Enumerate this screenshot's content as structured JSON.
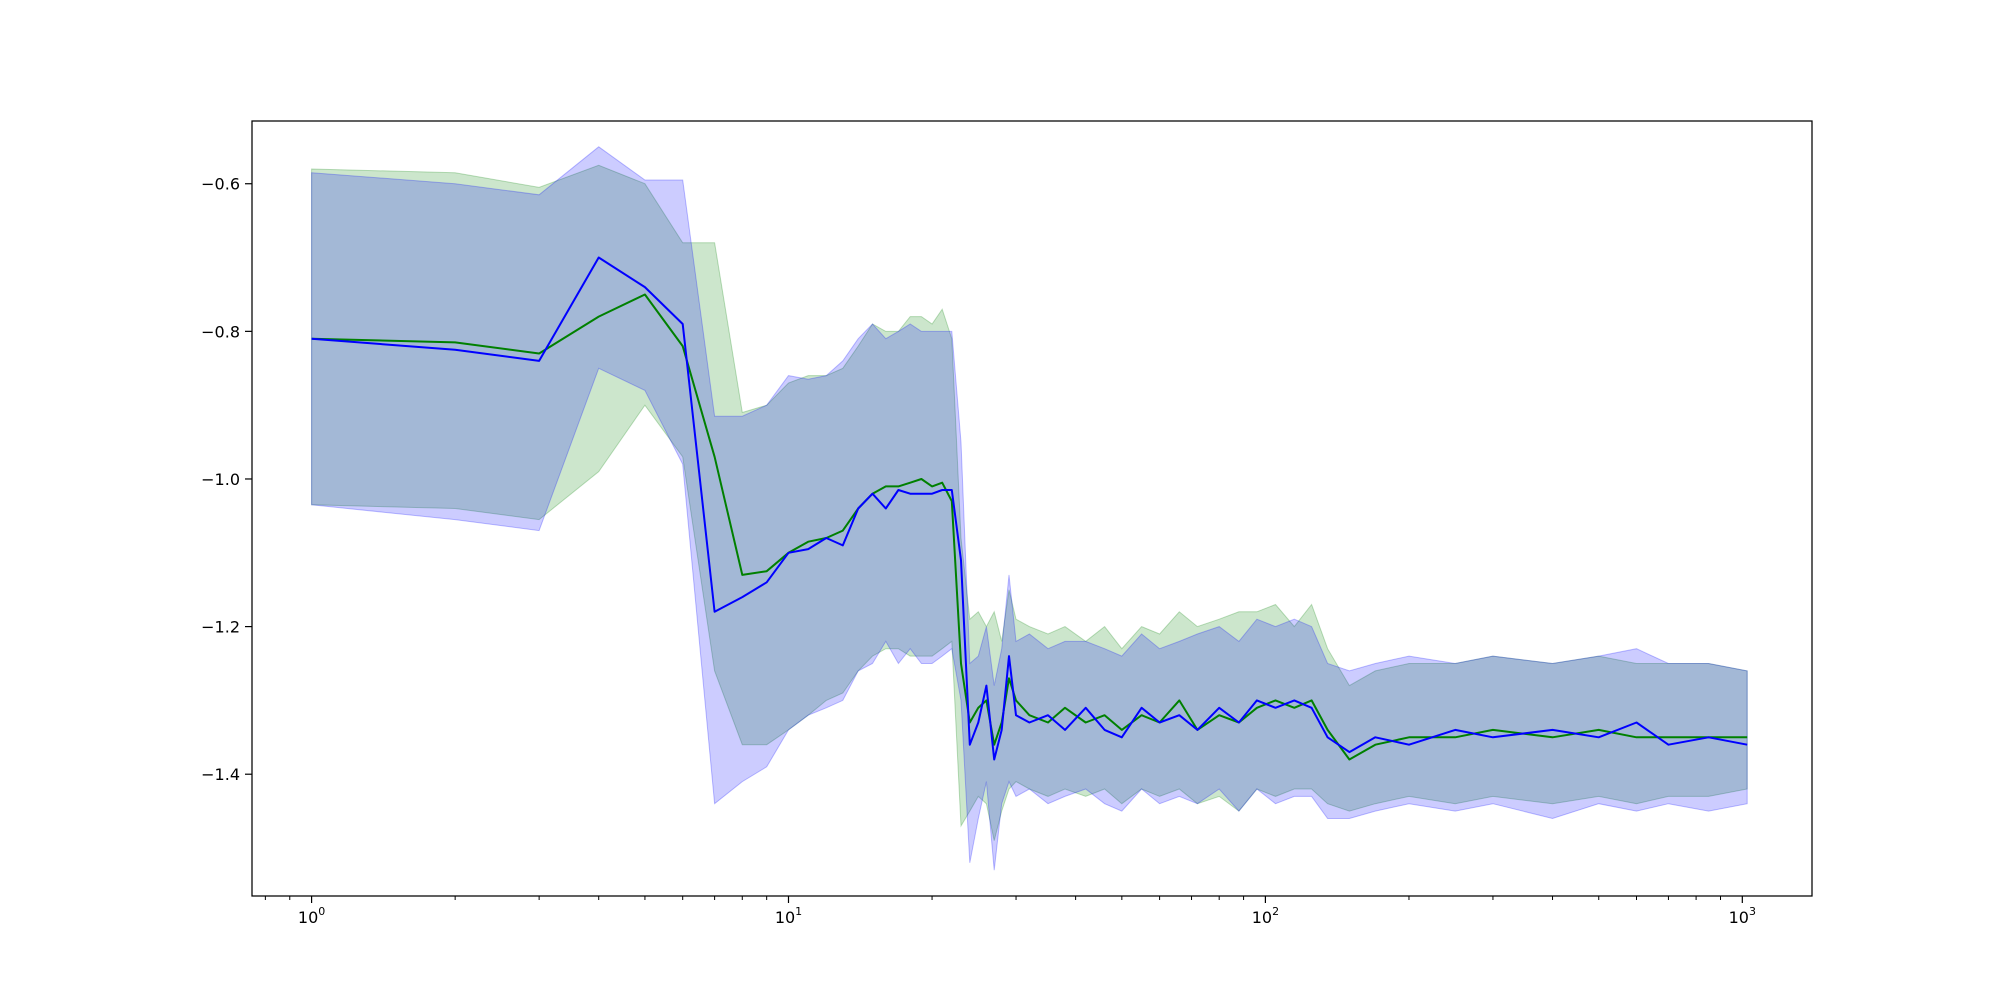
{
  "chart_data": {
    "type": "line",
    "title": "",
    "xlabel": "",
    "ylabel": "",
    "xscale": "log",
    "xlim": [
      0.75,
      1400
    ],
    "ylim": [
      -1.565,
      -0.515
    ],
    "grid": false,
    "legend": "none",
    "x_ticks": [
      {
        "value": 1,
        "base": "10",
        "exp": "0"
      },
      {
        "value": 10,
        "base": "10",
        "exp": "1"
      },
      {
        "value": 100,
        "base": "10",
        "exp": "2"
      },
      {
        "value": 1000,
        "base": "10",
        "exp": "3"
      }
    ],
    "y_ticks": [
      {
        "value": -0.6,
        "label": "−0.6"
      },
      {
        "value": -0.8,
        "label": "−0.8"
      },
      {
        "value": -1.0,
        "label": "−1.0"
      },
      {
        "value": -1.2,
        "label": "−1.2"
      },
      {
        "value": -1.4,
        "label": "−1.4"
      }
    ],
    "series": [
      {
        "color": "#008000",
        "band_color": "#008000",
        "band_opacity": 0.2,
        "x": [
          1,
          2,
          3,
          4,
          5,
          6,
          7,
          8,
          9,
          10,
          11,
          12,
          13,
          14,
          15,
          16,
          17,
          18,
          19,
          20,
          21,
          22,
          23,
          24,
          25,
          26,
          27,
          28,
          29,
          30,
          32,
          35,
          38,
          42,
          46,
          50,
          55,
          60,
          66,
          72,
          80,
          88,
          96,
          105,
          115,
          125,
          135,
          150,
          170,
          200,
          250,
          300,
          400,
          500,
          600,
          700,
          850,
          1024
        ],
        "y": [
          -0.81,
          -0.815,
          -0.83,
          -0.78,
          -0.75,
          -0.82,
          -0.97,
          -1.13,
          -1.125,
          -1.1,
          -1.085,
          -1.08,
          -1.07,
          -1.04,
          -1.02,
          -1.01,
          -1.01,
          -1.005,
          -1.0,
          -1.01,
          -1.005,
          -1.03,
          -1.25,
          -1.33,
          -1.31,
          -1.3,
          -1.36,
          -1.33,
          -1.27,
          -1.3,
          -1.32,
          -1.33,
          -1.31,
          -1.33,
          -1.32,
          -1.34,
          -1.32,
          -1.33,
          -1.3,
          -1.34,
          -1.32,
          -1.33,
          -1.31,
          -1.3,
          -1.31,
          -1.3,
          -1.34,
          -1.38,
          -1.36,
          -1.35,
          -1.35,
          -1.34,
          -1.35,
          -1.34,
          -1.35,
          -1.35,
          -1.35,
          -1.35
        ],
        "lower": [
          -1.035,
          -1.04,
          -1.055,
          -0.99,
          -0.9,
          -0.97,
          -1.26,
          -1.36,
          -1.36,
          -1.34,
          -1.32,
          -1.3,
          -1.29,
          -1.26,
          -1.24,
          -1.23,
          -1.23,
          -1.24,
          -1.24,
          -1.24,
          -1.23,
          -1.22,
          -1.47,
          -1.45,
          -1.43,
          -1.44,
          -1.49,
          -1.45,
          -1.42,
          -1.41,
          -1.42,
          -1.43,
          -1.42,
          -1.43,
          -1.42,
          -1.44,
          -1.42,
          -1.43,
          -1.42,
          -1.44,
          -1.43,
          -1.45,
          -1.42,
          -1.43,
          -1.42,
          -1.42,
          -1.44,
          -1.45,
          -1.44,
          -1.43,
          -1.44,
          -1.43,
          -1.44,
          -1.43,
          -1.44,
          -1.43,
          -1.43,
          -1.42
        ],
        "upper": [
          -0.58,
          -0.585,
          -0.605,
          -0.575,
          -0.6,
          -0.68,
          -0.68,
          -0.91,
          -0.9,
          -0.87,
          -0.86,
          -0.86,
          -0.85,
          -0.82,
          -0.79,
          -0.8,
          -0.8,
          -0.78,
          -0.78,
          -0.79,
          -0.77,
          -0.81,
          -1.08,
          -1.19,
          -1.18,
          -1.2,
          -1.18,
          -1.22,
          -1.15,
          -1.19,
          -1.2,
          -1.21,
          -1.2,
          -1.22,
          -1.2,
          -1.23,
          -1.2,
          -1.21,
          -1.18,
          -1.2,
          -1.19,
          -1.18,
          -1.18,
          -1.17,
          -1.2,
          -1.17,
          -1.23,
          -1.28,
          -1.26,
          -1.25,
          -1.25,
          -1.24,
          -1.25,
          -1.24,
          -1.25,
          -1.25,
          -1.25,
          -1.26
        ]
      },
      {
        "color": "#0000ff",
        "band_color": "#0000ff",
        "band_opacity": 0.2,
        "x": [
          1,
          2,
          3,
          4,
          5,
          6,
          7,
          8,
          9,
          10,
          11,
          12,
          13,
          14,
          15,
          16,
          17,
          18,
          19,
          20,
          21,
          22,
          23,
          24,
          25,
          26,
          27,
          28,
          29,
          30,
          32,
          35,
          38,
          42,
          46,
          50,
          55,
          60,
          66,
          72,
          80,
          88,
          96,
          105,
          115,
          125,
          135,
          150,
          170,
          200,
          250,
          300,
          400,
          500,
          600,
          700,
          850,
          1024
        ],
        "y": [
          -0.81,
          -0.825,
          -0.84,
          -0.7,
          -0.74,
          -0.79,
          -1.18,
          -1.16,
          -1.14,
          -1.1,
          -1.095,
          -1.08,
          -1.09,
          -1.04,
          -1.02,
          -1.04,
          -1.015,
          -1.02,
          -1.02,
          -1.02,
          -1.015,
          -1.015,
          -1.11,
          -1.36,
          -1.33,
          -1.28,
          -1.38,
          -1.34,
          -1.24,
          -1.32,
          -1.33,
          -1.32,
          -1.34,
          -1.31,
          -1.34,
          -1.35,
          -1.31,
          -1.33,
          -1.32,
          -1.34,
          -1.31,
          -1.33,
          -1.3,
          -1.31,
          -1.3,
          -1.31,
          -1.35,
          -1.37,
          -1.35,
          -1.36,
          -1.34,
          -1.35,
          -1.34,
          -1.35,
          -1.33,
          -1.36,
          -1.35,
          -1.36
        ],
        "lower": [
          -1.035,
          -1.055,
          -1.07,
          -0.85,
          -0.88,
          -0.98,
          -1.44,
          -1.41,
          -1.39,
          -1.34,
          -1.32,
          -1.31,
          -1.3,
          -1.26,
          -1.25,
          -1.22,
          -1.25,
          -1.23,
          -1.25,
          -1.25,
          -1.24,
          -1.23,
          -1.3,
          -1.52,
          -1.46,
          -1.41,
          -1.53,
          -1.44,
          -1.41,
          -1.43,
          -1.42,
          -1.44,
          -1.43,
          -1.42,
          -1.44,
          -1.45,
          -1.42,
          -1.44,
          -1.43,
          -1.44,
          -1.42,
          -1.45,
          -1.42,
          -1.44,
          -1.43,
          -1.43,
          -1.46,
          -1.46,
          -1.45,
          -1.44,
          -1.45,
          -1.44,
          -1.46,
          -1.44,
          -1.45,
          -1.44,
          -1.45,
          -1.44
        ],
        "upper": [
          -0.585,
          -0.6,
          -0.615,
          -0.55,
          -0.595,
          -0.595,
          -0.915,
          -0.915,
          -0.9,
          -0.86,
          -0.865,
          -0.86,
          -0.84,
          -0.81,
          -0.79,
          -0.81,
          -0.8,
          -0.79,
          -0.8,
          -0.8,
          -0.8,
          -0.8,
          -0.95,
          -1.25,
          -1.24,
          -1.2,
          -1.28,
          -1.23,
          -1.13,
          -1.22,
          -1.21,
          -1.23,
          -1.22,
          -1.22,
          -1.23,
          -1.24,
          -1.21,
          -1.23,
          -1.22,
          -1.21,
          -1.2,
          -1.22,
          -1.19,
          -1.2,
          -1.19,
          -1.2,
          -1.25,
          -1.26,
          -1.25,
          -1.24,
          -1.25,
          -1.24,
          -1.25,
          -1.24,
          -1.23,
          -1.25,
          -1.25,
          -1.26
        ]
      }
    ]
  }
}
